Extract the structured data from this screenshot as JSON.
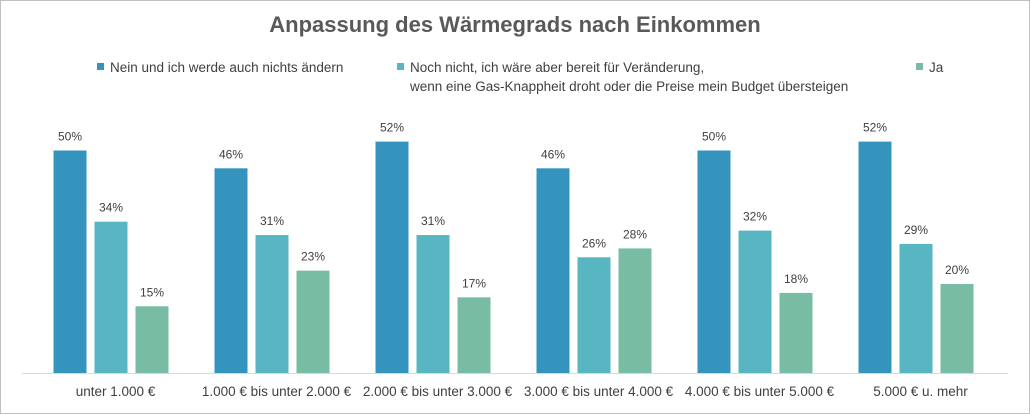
{
  "chart_data": {
    "type": "bar",
    "title": "Anpassung des Wärmegrads nach Einkommen",
    "categories": [
      "unter 1.000 €",
      "1.000 € bis unter 2.000 €",
      "2.000 € bis unter 3.000 €",
      "3.000 € bis unter 4.000 €",
      "4.000 € bis unter 5.000 €",
      "5.000 € u. mehr"
    ],
    "series": [
      {
        "name": "Nein und ich werde auch nichts ändern",
        "name_lines": [
          "Nein und ich werde auch nichts ändern"
        ],
        "color": "#3594bd",
        "values": [
          50,
          46,
          52,
          46,
          50,
          52
        ],
        "labels": [
          "50%",
          "46%",
          "52%",
          "46%",
          "50%",
          "52%"
        ]
      },
      {
        "name": "Noch nicht, ich wäre aber bereit für Veränderung, wenn eine Gas-Knappheit droht oder die Preise mein Budget übersteigen",
        "name_lines": [
          "Noch nicht, ich wäre aber bereit für Veränderung,",
          "wenn eine Gas-Knappheit droht oder die Preise mein Budget übersteigen"
        ],
        "color": "#57b6c1",
        "values": [
          34,
          31,
          31,
          26,
          32,
          29
        ],
        "labels": [
          "34%",
          "31%",
          "31%",
          "26%",
          "32%",
          "29%"
        ]
      },
      {
        "name": "Ja",
        "name_lines": [
          "Ja"
        ],
        "color": "#78bda3",
        "values": [
          15,
          23,
          17,
          28,
          18,
          20
        ],
        "labels": [
          "15%",
          "23%",
          "17%",
          "28%",
          "18%",
          "20%"
        ]
      }
    ],
    "ylim": [
      0,
      55
    ],
    "grid": false,
    "legend_position": "top",
    "xlabel": "",
    "ylabel": ""
  }
}
